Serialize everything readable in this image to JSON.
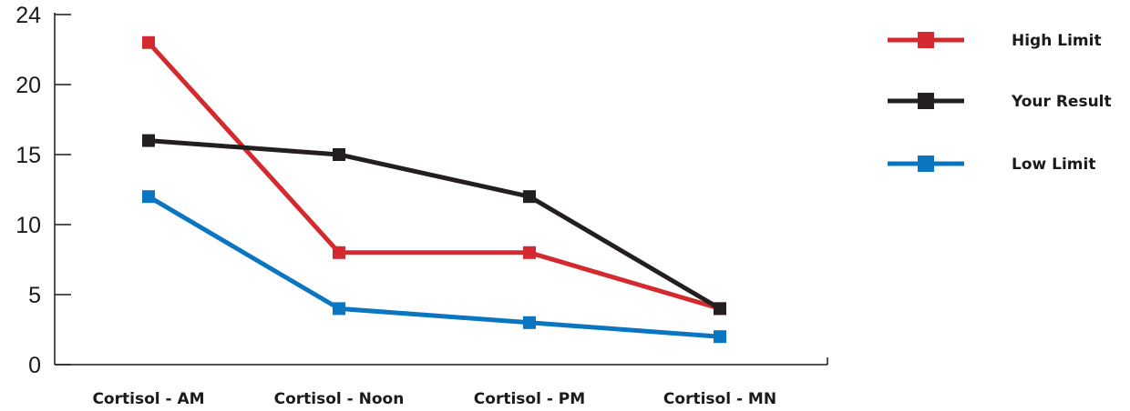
{
  "chart_data": {
    "type": "line",
    "categories": [
      "Cortisol - AM",
      "Cortisol - Noon",
      "Cortisol - PM",
      "Cortisol - MN"
    ],
    "series": [
      {
        "name": "High Limit",
        "color": "#d42a2f",
        "values": [
          23,
          8,
          8,
          4
        ]
      },
      {
        "name": "Your Result",
        "color": "#231f20",
        "values": [
          16,
          15,
          12,
          4
        ]
      },
      {
        "name": "Low Limit",
        "color": "#0a76c2",
        "values": [
          12,
          4,
          3,
          2
        ]
      }
    ],
    "y_ticks": [
      0,
      5,
      10,
      15,
      20,
      24
    ],
    "y_tick_labels": [
      "0",
      "5",
      "10",
      "15",
      "20",
      "24"
    ],
    "ylim": [
      0,
      25
    ],
    "grid": false,
    "legend_position": "right"
  }
}
